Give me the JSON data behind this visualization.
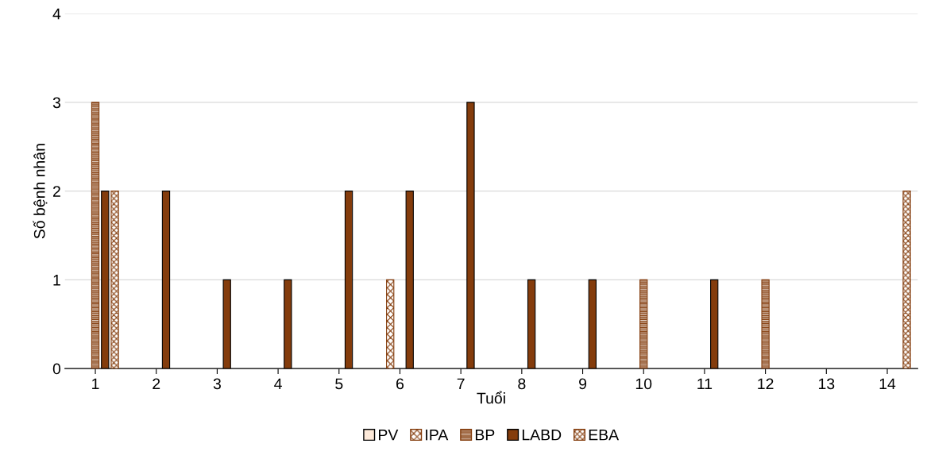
{
  "chart_data": {
    "type": "bar",
    "xlabel": "Tuổi",
    "ylabel": "Số bệnh nhân",
    "categories": [
      "1",
      "2",
      "3",
      "4",
      "5",
      "6",
      "7",
      "8",
      "9",
      "10",
      "11",
      "12",
      "13",
      "14"
    ],
    "series": [
      {
        "name": "PV",
        "color": "#fde9d9",
        "values": [
          null,
          null,
          null,
          null,
          null,
          null,
          null,
          null,
          null,
          null,
          null,
          null,
          null,
          null
        ]
      },
      {
        "name": "IPA",
        "color": "#843c0c",
        "values": [
          null,
          null,
          null,
          null,
          null,
          1,
          null,
          null,
          null,
          null,
          null,
          null,
          null,
          null
        ]
      },
      {
        "name": "BP",
        "color": "#843c0c",
        "values": [
          3,
          null,
          null,
          null,
          null,
          null,
          null,
          null,
          null,
          1,
          null,
          1,
          null,
          null
        ]
      },
      {
        "name": "LABD",
        "color": "#843c0c",
        "values": [
          2,
          2,
          1,
          1,
          2,
          2,
          3,
          1,
          1,
          null,
          1,
          null,
          null,
          null
        ]
      },
      {
        "name": "EBA",
        "color": "#843c0c",
        "values": [
          2,
          null,
          null,
          null,
          null,
          null,
          null,
          null,
          null,
          null,
          null,
          null,
          null,
          2
        ]
      }
    ],
    "ylim": [
      0,
      4
    ],
    "yticks": [
      0,
      1,
      2,
      3,
      4
    ],
    "grid": "y",
    "legend": "bottom"
  }
}
